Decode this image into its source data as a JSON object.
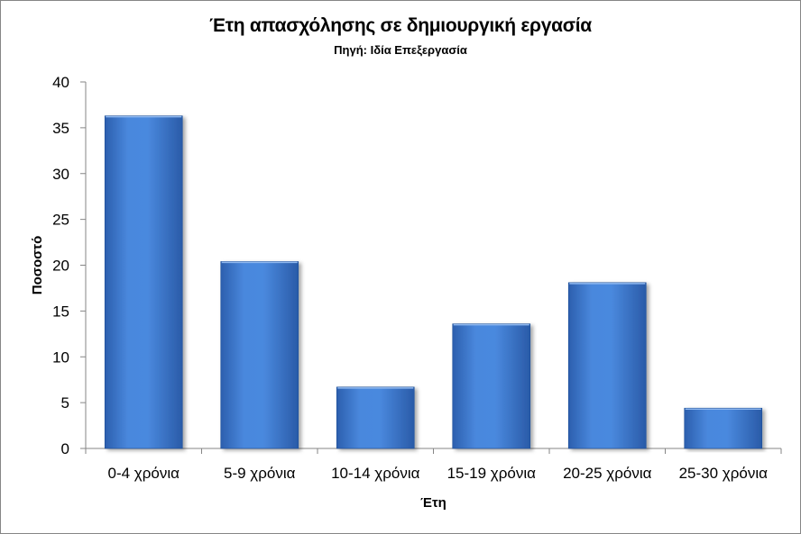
{
  "chart_data": {
    "type": "bar",
    "title": "Έτη απασχόλησης σε δημιουργική εργασία",
    "subtitle": "Πηγή: Ιδία Επεξεργασία",
    "xlabel": "Έτη",
    "ylabel": "Ποσοστό",
    "categories": [
      "0-4 χρόνια",
      "5-9 χρόνια",
      "10-14 χρόνια",
      "15-19 χρόνια",
      "20-25 χρόνια",
      "25-30 χρόνια"
    ],
    "values": [
      36.3,
      20.4,
      6.7,
      13.6,
      18.1,
      4.4
    ],
    "ylim": [
      0,
      40
    ],
    "yticks": [
      0,
      5,
      10,
      15,
      20,
      25,
      30,
      35,
      40
    ],
    "grid": false,
    "legend": "none",
    "bar_color": "#3f7fd6"
  }
}
